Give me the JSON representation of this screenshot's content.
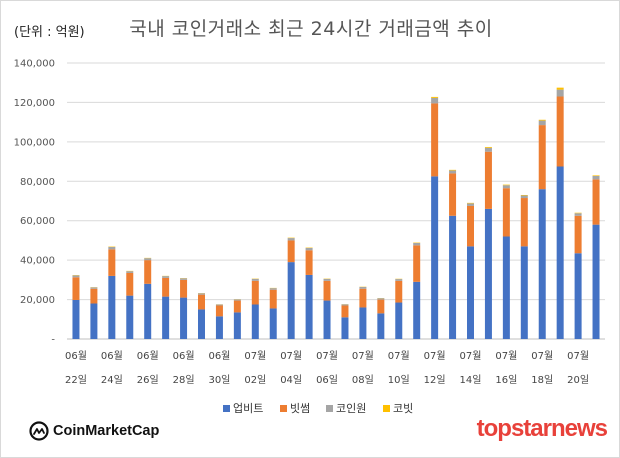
{
  "unit_label": "(단위 : 억원)",
  "title": "국내 코인거래소 최근 24시간 거래금액 추이",
  "colors": {
    "upbit": "#4472c4",
    "bithumb": "#ed7d31",
    "coinone": "#a5a5a5",
    "korbit": "#ffc000"
  },
  "brand": {
    "left_logo_text": "CoinMarketCap",
    "left_logo_icon": "coinmarketcap-logo-icon",
    "right_logo_text": "topstarnews"
  },
  "chart_data": {
    "type": "bar",
    "stacked": true,
    "ylim": [
      0,
      140000
    ],
    "yticks": [
      "-",
      "20,000",
      "40,000",
      "60,000",
      "80,000",
      "100,000",
      "120,000",
      "140,000"
    ],
    "grid": true,
    "legend_position": "bottom",
    "x_label_lines": [
      [
        "06월",
        "22일"
      ],
      [
        "06월",
        "24일"
      ],
      [
        "06월",
        "26일"
      ],
      [
        "06월",
        "28일"
      ],
      [
        "06월",
        "30일"
      ],
      [
        "07월",
        "02일"
      ],
      [
        "07월",
        "04일"
      ],
      [
        "07월",
        "06일"
      ],
      [
        "07월",
        "08일"
      ],
      [
        "07월",
        "10일"
      ],
      [
        "07월",
        "12일"
      ],
      [
        "07월",
        "14일"
      ],
      [
        "07월",
        "16일"
      ],
      [
        "07월",
        "18일"
      ],
      [
        "07월",
        "20일"
      ]
    ],
    "categories": [
      "06-22",
      "06-23",
      "06-24",
      "06-25",
      "06-26",
      "06-27",
      "06-28",
      "06-29",
      "06-30",
      "07-01",
      "07-02",
      "07-03",
      "07-04",
      "07-05",
      "07-06",
      "07-07",
      "07-08",
      "07-09",
      "07-10",
      "07-11",
      "07-12",
      "07-13",
      "07-14",
      "07-15",
      "07-16",
      "07-17",
      "07-18",
      "07-19",
      "07-20",
      "07-21"
    ],
    "series": [
      {
        "name": "업비트",
        "color_key": "upbit",
        "values": [
          19800,
          18000,
          32000,
          22000,
          28000,
          21500,
          21000,
          15000,
          11500,
          13500,
          17500,
          15500,
          39000,
          32500,
          19500,
          11000,
          16000,
          13000,
          18500,
          29000,
          82500,
          62500,
          47000,
          66000,
          52000,
          47000,
          76000,
          87500,
          43500,
          58000
        ]
      },
      {
        "name": "빗썸",
        "color_key": "bithumb",
        "values": [
          11500,
          7500,
          13500,
          11500,
          12000,
          9500,
          9000,
          7500,
          5500,
          6000,
          12000,
          9500,
          11000,
          12500,
          10000,
          6000,
          9500,
          7000,
          11000,
          18500,
          37000,
          21500,
          20500,
          29000,
          24500,
          24500,
          32500,
          35500,
          19000,
          23000
        ]
      },
      {
        "name": "코인원",
        "color_key": "coinone",
        "values": [
          1000,
          700,
          1200,
          900,
          1000,
          900,
          800,
          700,
          500,
          600,
          1000,
          800,
          1200,
          1200,
          1000,
          600,
          900,
          700,
          900,
          1200,
          2800,
          1500,
          1300,
          2000,
          1500,
          1300,
          2300,
          3500,
          1300,
          1700
        ]
      },
      {
        "name": "코빗",
        "color_key": "korbit",
        "values": [
          150,
          100,
          200,
          150,
          150,
          120,
          120,
          100,
          80,
          90,
          150,
          120,
          200,
          200,
          150,
          80,
          120,
          100,
          150,
          200,
          500,
          300,
          250,
          400,
          300,
          250,
          400,
          1000,
          250,
          300
        ]
      }
    ]
  }
}
